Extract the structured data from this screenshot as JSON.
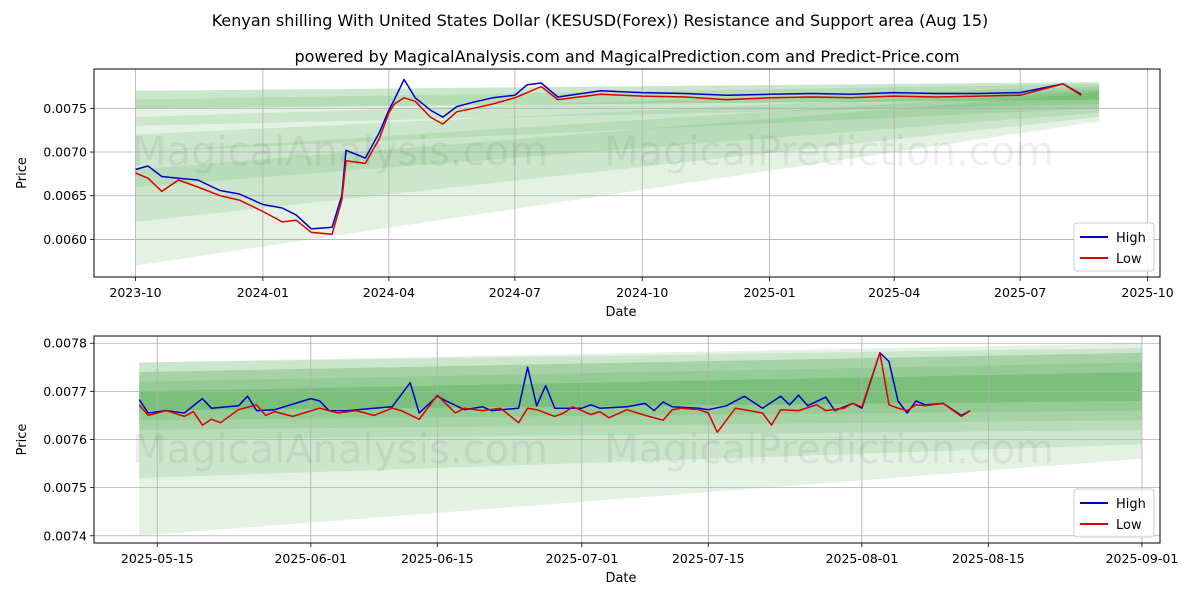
{
  "title": "Kenyan shilling With United States Dollar (KESUSD(Forex)) Resistance and Support area (Aug 15)",
  "subtitle": "powered by MagicalAnalysis.com and MagicalPrediction.com and Predict-Price.com",
  "watermarks": [
    "MagicalAnalysis.com",
    "MagicalPrediction.com"
  ],
  "colors": {
    "high": "#0000cc",
    "low": "#dd0000",
    "band": "#2e9e2e",
    "grid": "#b0b0b0"
  },
  "chart_data": [
    {
      "type": "line",
      "panel": "top",
      "xlabel": "Date",
      "ylabel": "Price",
      "grid": true,
      "legend_position": "bottom-right",
      "legend": [
        "High",
        "Low"
      ],
      "x_ticks": [
        "2023-10",
        "2024-01",
        "2024-04",
        "2024-07",
        "2024-10",
        "2025-01",
        "2025-04",
        "2025-07",
        "2025-10"
      ],
      "y_ticks": [
        "0.0060",
        "0.0065",
        "0.0070",
        "0.0075"
      ],
      "xlim": [
        "2023-09-01",
        "2025-10-10"
      ],
      "ylim": [
        0.00557,
        0.00795
      ],
      "series": [
        {
          "name": "High",
          "points": [
            [
              "2023-10-01",
              0.0068
            ],
            [
              "2023-10-10",
              0.00684
            ],
            [
              "2023-10-20",
              0.00672
            ],
            [
              "2023-11-01",
              0.0067
            ],
            [
              "2023-11-15",
              0.00668
            ],
            [
              "2023-12-01",
              0.00656
            ],
            [
              "2023-12-15",
              0.00652
            ],
            [
              "2024-01-01",
              0.0064
            ],
            [
              "2024-01-15",
              0.00636
            ],
            [
              "2024-01-25",
              0.00628
            ],
            [
              "2024-02-05",
              0.00612
            ],
            [
              "2024-02-20",
              0.00614
            ],
            [
              "2024-02-27",
              0.0065
            ],
            [
              "2024-03-01",
              0.00702
            ],
            [
              "2024-03-15",
              0.00693
            ],
            [
              "2024-03-25",
              0.00722
            ],
            [
              "2024-04-01",
              0.00748
            ],
            [
              "2024-04-05",
              0.0076
            ],
            [
              "2024-04-12",
              0.00783
            ],
            [
              "2024-04-20",
              0.00762
            ],
            [
              "2024-05-01",
              0.00748
            ],
            [
              "2024-05-10",
              0.0074
            ],
            [
              "2024-05-20",
              0.00752
            ],
            [
              "2024-06-01",
              0.00757
            ],
            [
              "2024-06-15",
              0.00762
            ],
            [
              "2024-07-01",
              0.00765
            ],
            [
              "2024-07-10",
              0.00777
            ],
            [
              "2024-07-20",
              0.00779
            ],
            [
              "2024-08-01",
              0.00763
            ],
            [
              "2024-09-01",
              0.0077
            ],
            [
              "2024-10-01",
              0.00768
            ],
            [
              "2024-11-01",
              0.00767
            ],
            [
              "2024-12-01",
              0.00765
            ],
            [
              "2025-01-01",
              0.00766
            ],
            [
              "2025-02-01",
              0.00767
            ],
            [
              "2025-03-01",
              0.00766
            ],
            [
              "2025-04-01",
              0.00768
            ],
            [
              "2025-05-01",
              0.00767
            ],
            [
              "2025-06-01",
              0.00767
            ],
            [
              "2025-07-01",
              0.00768
            ],
            [
              "2025-08-01",
              0.00778
            ],
            [
              "2025-08-14",
              0.00766
            ]
          ]
        },
        {
          "name": "Low",
          "points": [
            [
              "2023-10-01",
              0.00676
            ],
            [
              "2023-10-10",
              0.0067
            ],
            [
              "2023-10-20",
              0.00655
            ],
            [
              "2023-11-01",
              0.00668
            ],
            [
              "2023-11-15",
              0.0066
            ],
            [
              "2023-12-01",
              0.0065
            ],
            [
              "2023-12-15",
              0.00645
            ],
            [
              "2024-01-01",
              0.00632
            ],
            [
              "2024-01-15",
              0.0062
            ],
            [
              "2024-01-25",
              0.00622
            ],
            [
              "2024-02-05",
              0.00608
            ],
            [
              "2024-02-20",
              0.00606
            ],
            [
              "2024-02-27",
              0.00645
            ],
            [
              "2024-03-01",
              0.0069
            ],
            [
              "2024-03-15",
              0.00687
            ],
            [
              "2024-03-25",
              0.00715
            ],
            [
              "2024-04-01",
              0.00745
            ],
            [
              "2024-04-05",
              0.00755
            ],
            [
              "2024-04-12",
              0.00762
            ],
            [
              "2024-04-20",
              0.00758
            ],
            [
              "2024-05-01",
              0.0074
            ],
            [
              "2024-05-10",
              0.00732
            ],
            [
              "2024-05-20",
              0.00746
            ],
            [
              "2024-06-01",
              0.0075
            ],
            [
              "2024-06-15",
              0.00755
            ],
            [
              "2024-07-01",
              0.00762
            ],
            [
              "2024-07-10",
              0.00768
            ],
            [
              "2024-07-20",
              0.00775
            ],
            [
              "2024-08-01",
              0.0076
            ],
            [
              "2024-09-01",
              0.00766
            ],
            [
              "2024-10-01",
              0.00764
            ],
            [
              "2024-11-01",
              0.00763
            ],
            [
              "2024-12-01",
              0.0076
            ],
            [
              "2025-01-01",
              0.00762
            ],
            [
              "2025-02-01",
              0.00763
            ],
            [
              "2025-03-01",
              0.00762
            ],
            [
              "2025-04-01",
              0.00764
            ],
            [
              "2025-05-01",
              0.00763
            ],
            [
              "2025-06-01",
              0.00764
            ],
            [
              "2025-07-01",
              0.00765
            ],
            [
              "2025-08-01",
              0.00778
            ],
            [
              "2025-08-14",
              0.00765
            ]
          ]
        }
      ],
      "bands": {
        "x_start": "2023-10-01",
        "x_end": "2025-08-27",
        "list": [
          [
            0.0075,
            0.0077,
            0.0076,
            0.0078
          ],
          [
            0.0073,
            0.0076,
            0.00755,
            0.00778
          ],
          [
            0.007,
            0.0074,
            0.0075,
            0.00775
          ],
          [
            0.0066,
            0.0072,
            0.00745,
            0.00772
          ],
          [
            0.0062,
            0.007,
            0.0074,
            0.0077
          ],
          [
            0.0057,
            0.0068,
            0.00735,
            0.00768
          ]
        ]
      }
    },
    {
      "type": "line",
      "panel": "bottom",
      "xlabel": "Date",
      "ylabel": "Price",
      "grid": true,
      "legend_position": "bottom-right",
      "legend": [
        "High",
        "Low"
      ],
      "x_ticks": [
        "2025-05-15",
        "2025-06-01",
        "2025-06-15",
        "2025-07-01",
        "2025-07-15",
        "2025-08-01",
        "2025-08-15",
        "2025-09-01"
      ],
      "y_ticks": [
        "0.0074",
        "0.0075",
        "0.0076",
        "0.0077",
        "0.0078"
      ],
      "xlim": [
        "2025-05-08",
        "2025-09-03"
      ],
      "ylim": [
        0.007385,
        0.007815
      ],
      "series": [
        {
          "name": "High",
          "points": [
            [
              "2025-05-13",
              0.007683
            ],
            [
              "2025-05-14",
              0.007655
            ],
            [
              "2025-05-16",
              0.00766
            ],
            [
              "2025-05-18",
              0.007655
            ],
            [
              "2025-05-20",
              0.007685
            ],
            [
              "2025-05-21",
              0.007665
            ],
            [
              "2025-05-24",
              0.00767
            ],
            [
              "2025-05-25",
              0.00769
            ],
            [
              "2025-05-26",
              0.00766
            ],
            [
              "2025-05-28",
              0.007662
            ],
            [
              "2025-06-01",
              0.007685
            ],
            [
              "2025-06-02",
              0.00768
            ],
            [
              "2025-06-03",
              0.00766
            ],
            [
              "2025-06-05",
              0.00766
            ],
            [
              "2025-06-08",
              0.007665
            ],
            [
              "2025-06-10",
              0.007668
            ],
            [
              "2025-06-12",
              0.007718
            ],
            [
              "2025-06-13",
              0.007655
            ],
            [
              "2025-06-15",
              0.00769
            ],
            [
              "2025-06-16",
              0.00768
            ],
            [
              "2025-06-18",
              0.007662
            ],
            [
              "2025-06-20",
              0.007668
            ],
            [
              "2025-06-21",
              0.00766
            ],
            [
              "2025-06-24",
              0.007665
            ],
            [
              "2025-06-25",
              0.00775
            ],
            [
              "2025-06-26",
              0.00767
            ],
            [
              "2025-06-27",
              0.007712
            ],
            [
              "2025-06-28",
              0.007665
            ],
            [
              "2025-07-01",
              0.007665
            ],
            [
              "2025-07-02",
              0.007672
            ],
            [
              "2025-07-03",
              0.007665
            ],
            [
              "2025-07-06",
              0.007668
            ],
            [
              "2025-07-08",
              0.007675
            ],
            [
              "2025-07-09",
              0.00766
            ],
            [
              "2025-07-10",
              0.007678
            ],
            [
              "2025-07-11",
              0.007668
            ],
            [
              "2025-07-14",
              0.007665
            ],
            [
              "2025-07-15",
              0.007662
            ],
            [
              "2025-07-17",
              0.00767
            ],
            [
              "2025-07-19",
              0.00769
            ],
            [
              "2025-07-21",
              0.007665
            ],
            [
              "2025-07-23",
              0.00769
            ],
            [
              "2025-07-24",
              0.007672
            ],
            [
              "2025-07-25",
              0.007692
            ],
            [
              "2025-07-26",
              0.00767
            ],
            [
              "2025-07-28",
              0.007688
            ],
            [
              "2025-07-29",
              0.00766
            ],
            [
              "2025-07-31",
              0.007675
            ],
            [
              "2025-08-01",
              0.007665
            ],
            [
              "2025-08-03",
              0.00778
            ],
            [
              "2025-08-04",
              0.007762
            ],
            [
              "2025-08-05",
              0.00768
            ],
            [
              "2025-08-06",
              0.007655
            ],
            [
              "2025-08-07",
              0.00768
            ],
            [
              "2025-08-08",
              0.007672
            ],
            [
              "2025-08-10",
              0.007675
            ],
            [
              "2025-08-12",
              0.00765
            ],
            [
              "2025-08-13",
              0.00766
            ]
          ]
        },
        {
          "name": "Low",
          "points": [
            [
              "2025-05-13",
              0.007672
            ],
            [
              "2025-05-14",
              0.00765
            ],
            [
              "2025-05-16",
              0.00766
            ],
            [
              "2025-05-18",
              0.007648
            ],
            [
              "2025-05-19",
              0.007658
            ],
            [
              "2025-05-20",
              0.00763
            ],
            [
              "2025-05-21",
              0.007642
            ],
            [
              "2025-05-22",
              0.007635
            ],
            [
              "2025-05-24",
              0.007662
            ],
            [
              "2025-05-26",
              0.007672
            ],
            [
              "2025-05-27",
              0.00765
            ],
            [
              "2025-05-28",
              0.007658
            ],
            [
              "2025-05-30",
              0.007648
            ],
            [
              "2025-06-02",
              0.007665
            ],
            [
              "2025-06-04",
              0.007655
            ],
            [
              "2025-06-06",
              0.00766
            ],
            [
              "2025-06-08",
              0.00765
            ],
            [
              "2025-06-10",
              0.007665
            ],
            [
              "2025-06-11",
              0.00766
            ],
            [
              "2025-06-13",
              0.007642
            ],
            [
              "2025-06-15",
              0.007692
            ],
            [
              "2025-06-17",
              0.007655
            ],
            [
              "2025-06-18",
              0.007665
            ],
            [
              "2025-06-20",
              0.00766
            ],
            [
              "2025-06-22",
              0.007665
            ],
            [
              "2025-06-24",
              0.007635
            ],
            [
              "2025-06-25",
              0.007665
            ],
            [
              "2025-06-26",
              0.007662
            ],
            [
              "2025-06-28",
              0.007648
            ],
            [
              "2025-06-29",
              0.007655
            ],
            [
              "2025-06-30",
              0.007668
            ],
            [
              "2025-07-02",
              0.007652
            ],
            [
              "2025-07-03",
              0.007658
            ],
            [
              "2025-07-04",
              0.007645
            ],
            [
              "2025-07-06",
              0.007662
            ],
            [
              "2025-07-08",
              0.00765
            ],
            [
              "2025-07-10",
              0.00764
            ],
            [
              "2025-07-11",
              0.007662
            ],
            [
              "2025-07-12",
              0.007665
            ],
            [
              "2025-07-14",
              0.007662
            ],
            [
              "2025-07-15",
              0.007655
            ],
            [
              "2025-07-16",
              0.007615
            ],
            [
              "2025-07-17",
              0.00764
            ],
            [
              "2025-07-18",
              0.007665
            ],
            [
              "2025-07-19",
              0.007662
            ],
            [
              "2025-07-21",
              0.007655
            ],
            [
              "2025-07-22",
              0.00763
            ],
            [
              "2025-07-23",
              0.007662
            ],
            [
              "2025-07-25",
              0.00766
            ],
            [
              "2025-07-27",
              0.007672
            ],
            [
              "2025-07-28",
              0.00766
            ],
            [
              "2025-07-30",
              0.007665
            ],
            [
              "2025-07-31",
              0.007675
            ],
            [
              "2025-08-01",
              0.007668
            ],
            [
              "2025-08-03",
              0.00778
            ],
            [
              "2025-08-04",
              0.007672
            ],
            [
              "2025-08-05",
              0.007665
            ],
            [
              "2025-08-06",
              0.00766
            ],
            [
              "2025-08-07",
              0.007672
            ],
            [
              "2025-08-08",
              0.00767
            ],
            [
              "2025-08-10",
              0.007675
            ],
            [
              "2025-08-12",
              0.007648
            ],
            [
              "2025-08-13",
              0.00766
            ]
          ]
        }
      ],
      "bands": {
        "x_start": "2025-05-13",
        "x_end": "2025-09-01",
        "list": [
          [
            0.00766,
            0.0077,
            0.00768,
            0.00774
          ],
          [
            0.00764,
            0.00772,
            0.00766,
            0.00776
          ],
          [
            0.00762,
            0.00774,
            0.00764,
            0.00778
          ],
          [
            0.0076,
            0.00776,
            0.00762,
            0.0078
          ],
          [
            0.00752,
            0.00776,
            0.00759,
            0.00779
          ],
          [
            0.0074,
            0.00774,
            0.00756,
            0.00778
          ]
        ]
      }
    }
  ]
}
